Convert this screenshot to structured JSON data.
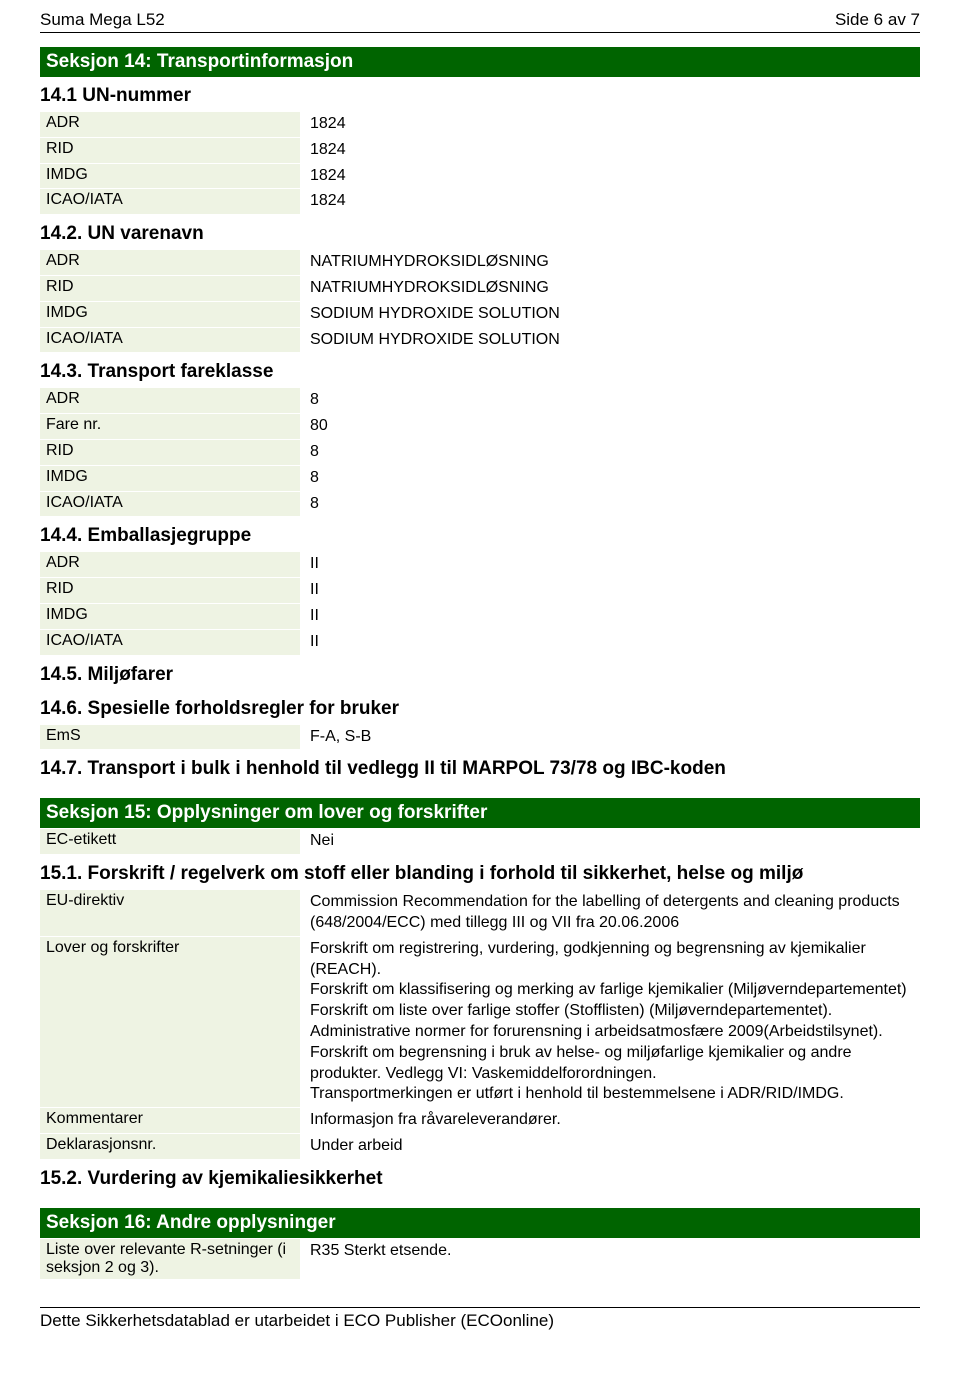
{
  "header": {
    "left": "Suma Mega L52",
    "right": "Side 6 av 7"
  },
  "section14": {
    "title": "Seksjon 14: Transportinformasjon",
    "s1": {
      "heading": "14.1 UN-nummer",
      "rows": [
        {
          "label": "ADR",
          "value": "1824"
        },
        {
          "label": "RID",
          "value": "1824"
        },
        {
          "label": "IMDG",
          "value": "1824"
        },
        {
          "label": "ICAO/IATA",
          "value": "1824"
        }
      ]
    },
    "s2": {
      "heading": "14.2. UN varenavn",
      "rows": [
        {
          "label": "ADR",
          "value": "NATRIUMHYDROKSIDLØSNING"
        },
        {
          "label": "RID",
          "value": "NATRIUMHYDROKSIDLØSNING"
        },
        {
          "label": "IMDG",
          "value": "SODIUM HYDROXIDE SOLUTION"
        },
        {
          "label": "ICAO/IATA",
          "value": "SODIUM HYDROXIDE SOLUTION"
        }
      ]
    },
    "s3": {
      "heading": "14.3. Transport fareklasse",
      "rows": [
        {
          "label": "ADR",
          "value": "8"
        },
        {
          "label": "Fare nr.",
          "value": "80"
        },
        {
          "label": "RID",
          "value": "8"
        },
        {
          "label": "IMDG",
          "value": "8"
        },
        {
          "label": "ICAO/IATA",
          "value": "8"
        }
      ]
    },
    "s4": {
      "heading": "14.4. Emballasjegruppe",
      "rows": [
        {
          "label": "ADR",
          "value": "II"
        },
        {
          "label": "RID",
          "value": "II"
        },
        {
          "label": "IMDG",
          "value": "II"
        },
        {
          "label": "ICAO/IATA",
          "value": "II"
        }
      ]
    },
    "s5": {
      "heading": "14.5. Miljøfarer"
    },
    "s6": {
      "heading": "14.6. Spesielle forholdsregler for bruker",
      "rows": [
        {
          "label": "EmS",
          "value": "F-A, S-B"
        }
      ]
    },
    "s7": {
      "heading": "14.7. Transport i bulk i henhold til vedlegg II til MARPOL 73/78 og IBC-koden"
    }
  },
  "section15": {
    "title": "Seksjon 15: Opplysninger om lover og forskrifter",
    "rows0": [
      {
        "label": "EC-etikett",
        "value": "Nei"
      }
    ],
    "s1": {
      "heading": "15.1. Forskrift / regelverk om stoff eller blanding i forhold til sikkerhet, helse og miljø",
      "rows": [
        {
          "label": "EU-direktiv",
          "value": "Commission Recommendation for the labelling of detergents and cleaning products (648/2004/ECC) med tillegg III og VII fra 20.06.2006"
        },
        {
          "label": "Lover og forskrifter",
          "value": "Forskrift om registrering, vurdering, godkjenning og begrensning av kjemikalier (REACH).\nForskrift om klassifisering og merking av farlige kjemikalier (Miljøverndepartementet)\nForskrift om liste over farlige stoffer (Stofflisten) (Miljøverndepartementet).\nAdministrative normer for forurensning i arbeidsatmosfære 2009(Arbeidstilsynet).\nForskrift om begrensning i bruk av helse- og miljøfarlige kjemikalier og andre produkter. Vedlegg VI: Vaskemiddelforordningen.\nTransportmerkingen er utført i henhold til bestemmelsene i ADR/RID/IMDG."
        },
        {
          "label": "Kommentarer",
          "value": "Informasjon fra råvareleverandører."
        },
        {
          "label": "Deklarasjonsnr.",
          "value": "Under arbeid"
        }
      ]
    },
    "s2": {
      "heading": "15.2. Vurdering av kjemikaliesikkerhet"
    }
  },
  "section16": {
    "title": "Seksjon 16: Andre opplysninger",
    "rows": [
      {
        "label": "Liste over relevante R-setninger (i seksjon 2 og 3).",
        "value": "R35 Sterkt etsende."
      }
    ]
  },
  "footer": {
    "text": "Dette Sikkerhetsdatablad er utarbeidet i ECO Publisher (ECOonline)"
  }
}
